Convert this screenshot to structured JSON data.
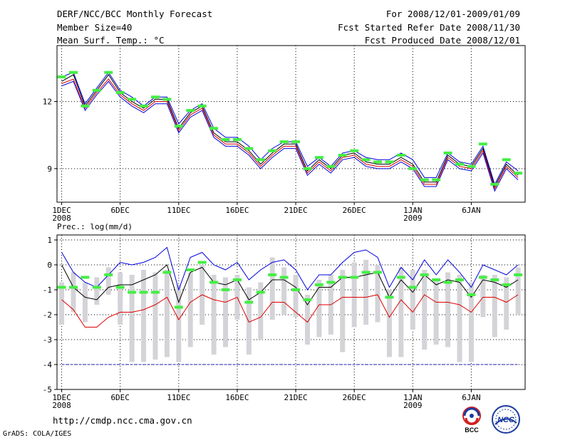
{
  "header": {
    "title": "DERF/NCC/BCC Monthly Forecast",
    "member_size": "Member Size=40",
    "variable": "Mean Surf. Temp.: °C",
    "period": "For 2008/12/01-2009/01/09",
    "started": "Fcst Started Refer Date 2008/11/30",
    "produced": "Fcst Produced Date 2008/12/01"
  },
  "footer": {
    "url": "http://cmdp.ncc.cma.gov.cn",
    "grads": "GrADS: COLA/IGES",
    "logo_bcc": "BCC",
    "logo_ncc": "NCC"
  },
  "colors": {
    "upper": "#0000dd",
    "lower": "#dd0000",
    "mean": "#000000",
    "obs": "#44ee44",
    "spread": "#d4d4d8",
    "ref": "#2222bb"
  },
  "chart_data": [
    {
      "type": "line",
      "title": "Mean Surf. Temp.: °C",
      "xlabel": "",
      "ylabel": "",
      "x": [
        1,
        2,
        3,
        4,
        5,
        6,
        7,
        8,
        9,
        10,
        11,
        12,
        13,
        14,
        15,
        16,
        17,
        18,
        19,
        20,
        21,
        22,
        23,
        24,
        25,
        26,
        27,
        28,
        29,
        30,
        31,
        32,
        33,
        34,
        35,
        36,
        37,
        38,
        39,
        40
      ],
      "x_ticks": [
        {
          "x": 1,
          "label": "1DEC",
          "sub": "2008"
        },
        {
          "x": 6,
          "label": "6DEC",
          "sub": ""
        },
        {
          "x": 11,
          "label": "11DEC",
          "sub": ""
        },
        {
          "x": 16,
          "label": "16DEC",
          "sub": ""
        },
        {
          "x": 21,
          "label": "21DEC",
          "sub": ""
        },
        {
          "x": 26,
          "label": "26DEC",
          "sub": ""
        },
        {
          "x": 31,
          "label": "1JAN",
          "sub": "2009"
        },
        {
          "x": 36,
          "label": "6JAN",
          "sub": ""
        }
      ],
      "xlim": [
        0.6,
        40.6
      ],
      "ylim": [
        7.5,
        14.5
      ],
      "y_ticks": [
        9,
        12
      ],
      "grid": true,
      "series": [
        {
          "name": "upper",
          "values": [
            13.1,
            13.3,
            11.9,
            12.6,
            13.3,
            12.5,
            12.2,
            11.8,
            12.2,
            12.2,
            11.0,
            11.6,
            11.9,
            10.8,
            10.4,
            10.4,
            10.0,
            9.4,
            9.9,
            10.2,
            10.2,
            9.1,
            9.5,
            9.1,
            9.7,
            9.8,
            9.5,
            9.4,
            9.4,
            9.7,
            9.4,
            8.6,
            8.6,
            9.7,
            9.3,
            9.2,
            10.0,
            8.3,
            9.3,
            8.9
          ]
        },
        {
          "name": "mean",
          "values": [
            12.9,
            13.2,
            11.8,
            12.5,
            13.2,
            12.4,
            12.0,
            11.7,
            12.1,
            12.1,
            10.8,
            11.5,
            11.8,
            10.6,
            10.2,
            10.2,
            9.8,
            9.2,
            9.7,
            10.1,
            10.1,
            8.9,
            9.4,
            9.0,
            9.6,
            9.7,
            9.3,
            9.2,
            9.2,
            9.5,
            9.2,
            8.4,
            8.4,
            9.6,
            9.2,
            9.1,
            9.9,
            8.2,
            9.2,
            8.7
          ]
        },
        {
          "name": "lower",
          "values": [
            12.8,
            13.0,
            11.7,
            12.4,
            13.0,
            12.3,
            11.9,
            11.6,
            12.0,
            12.0,
            10.7,
            11.4,
            11.7,
            10.5,
            10.1,
            10.1,
            9.7,
            9.1,
            9.6,
            10.0,
            10.0,
            8.8,
            9.3,
            8.9,
            9.5,
            9.6,
            9.2,
            9.1,
            9.1,
            9.4,
            9.1,
            8.3,
            8.3,
            9.5,
            9.1,
            9.0,
            9.8,
            8.1,
            9.1,
            8.6
          ]
        },
        {
          "name": "lowest",
          "values": [
            12.7,
            12.9,
            11.6,
            12.3,
            12.9,
            12.2,
            11.8,
            11.5,
            11.9,
            11.9,
            10.6,
            11.3,
            11.6,
            10.4,
            10.0,
            10.0,
            9.6,
            9.0,
            9.5,
            9.9,
            9.9,
            8.7,
            9.2,
            8.8,
            9.4,
            9.5,
            9.1,
            9.0,
            9.0,
            9.3,
            9.0,
            8.2,
            8.2,
            9.4,
            9.0,
            8.9,
            9.7,
            8.0,
            9.0,
            8.5
          ]
        }
      ],
      "observed": [
        13.1,
        13.3,
        11.8,
        12.5,
        13.3,
        12.4,
        12.1,
        11.8,
        12.2,
        12.1,
        10.9,
        11.6,
        11.8,
        10.8,
        10.3,
        10.3,
        9.9,
        9.4,
        9.8,
        10.2,
        10.2,
        9.0,
        9.5,
        9.1,
        9.6,
        9.8,
        9.4,
        9.3,
        9.3,
        9.6,
        9.0,
        8.5,
        8.5,
        9.7,
        9.2,
        9.1,
        10.1,
        8.3,
        9.4,
        8.8
      ]
    },
    {
      "type": "line",
      "title": "Prec.: log(mm/d)",
      "xlabel": "",
      "ylabel": "",
      "x": [
        1,
        2,
        3,
        4,
        5,
        6,
        7,
        8,
        9,
        10,
        11,
        12,
        13,
        14,
        15,
        16,
        17,
        18,
        19,
        20,
        21,
        22,
        23,
        24,
        25,
        26,
        27,
        28,
        29,
        30,
        31,
        32,
        33,
        34,
        35,
        36,
        37,
        38,
        39,
        40
      ],
      "x_ticks": [
        {
          "x": 1,
          "label": "1DEC",
          "sub": "2008"
        },
        {
          "x": 6,
          "label": "6DEC",
          "sub": ""
        },
        {
          "x": 11,
          "label": "11DEC",
          "sub": ""
        },
        {
          "x": 16,
          "label": "16DEC",
          "sub": ""
        },
        {
          "x": 21,
          "label": "21DEC",
          "sub": ""
        },
        {
          "x": 26,
          "label": "26DEC",
          "sub": ""
        },
        {
          "x": 31,
          "label": "1JAN",
          "sub": "2009"
        },
        {
          "x": 36,
          "label": "6JAN",
          "sub": ""
        }
      ],
      "xlim": [
        0.6,
        40.6
      ],
      "ylim": [
        -5,
        1.2
      ],
      "y_ticks": [
        -5,
        -4,
        -3,
        -2,
        -1,
        0,
        1
      ],
      "grid": true,
      "reference_line": -4,
      "series": [
        {
          "name": "upper",
          "values": [
            0.5,
            -0.3,
            -0.7,
            -0.9,
            -0.4,
            0.1,
            0.0,
            0.1,
            0.3,
            0.7,
            -1.0,
            0.3,
            0.5,
            0.0,
            -0.2,
            0.1,
            -0.6,
            -0.2,
            0.1,
            0.2,
            -0.2,
            -1.0,
            -0.4,
            -0.4,
            0.1,
            0.5,
            0.6,
            0.3,
            -0.9,
            -0.1,
            -0.6,
            0.2,
            -0.4,
            0.2,
            -0.3,
            -0.9,
            0.0,
            -0.2,
            -0.4,
            0.0
          ]
        },
        {
          "name": "mean",
          "values": [
            0.0,
            -0.9,
            -1.3,
            -1.4,
            -0.9,
            -0.8,
            -0.8,
            -0.6,
            -0.4,
            0.0,
            -1.5,
            -0.3,
            -0.1,
            -0.7,
            -0.8,
            -0.6,
            -1.4,
            -1.1,
            -0.6,
            -0.6,
            -0.9,
            -1.6,
            -0.9,
            -0.9,
            -0.5,
            -0.5,
            -0.4,
            -0.3,
            -1.3,
            -0.6,
            -1.1,
            -0.4,
            -0.8,
            -0.6,
            -0.7,
            -1.3,
            -0.6,
            -0.7,
            -0.9,
            -0.6
          ]
        },
        {
          "name": "lower",
          "values": [
            -1.4,
            -1.8,
            -2.5,
            -2.5,
            -2.1,
            -1.9,
            -1.9,
            -1.8,
            -1.6,
            -1.3,
            -2.2,
            -1.5,
            -1.2,
            -1.4,
            -1.5,
            -1.3,
            -2.3,
            -2.1,
            -1.5,
            -1.5,
            -1.9,
            -2.3,
            -1.6,
            -1.6,
            -1.3,
            -1.3,
            -1.3,
            -1.2,
            -2.1,
            -1.4,
            -1.9,
            -1.2,
            -1.5,
            -1.5,
            -1.6,
            -1.9,
            -1.3,
            -1.3,
            -1.5,
            -1.2
          ]
        }
      ],
      "observed": [
        -0.9,
        -0.9,
        -0.5,
        -0.9,
        -0.4,
        -0.9,
        -1.1,
        -1.1,
        -1.1,
        -0.3,
        -1.7,
        -0.2,
        0.1,
        -0.7,
        -1.0,
        -0.6,
        -1.5,
        -1.1,
        -0.4,
        -0.5,
        -1.0,
        -1.4,
        -0.8,
        -0.7,
        -0.5,
        -0.5,
        -0.3,
        -0.3,
        -1.3,
        -0.5,
        -0.9,
        -0.4,
        -0.6,
        -0.7,
        -0.6,
        -1.2,
        -0.5,
        -0.6,
        -0.8,
        -0.4
      ],
      "spread": [
        [
          -2.4,
          -0.7
        ],
        [
          -1.9,
          -0.3
        ],
        [
          -2.3,
          -0.7
        ],
        [
          -1.6,
          -0.5
        ],
        [
          -1.2,
          -0.1
        ],
        [
          -2.4,
          -0.3
        ],
        [
          -3.9,
          -0.4
        ],
        [
          -3.9,
          -0.2
        ],
        [
          -3.8,
          -0.3
        ],
        [
          -3.7,
          -0.2
        ],
        [
          -3.9,
          -0.8
        ],
        [
          -3.3,
          -0.3
        ],
        [
          -2.4,
          0.0
        ],
        [
          -3.6,
          -0.4
        ],
        [
          -3.3,
          -0.5
        ],
        [
          -2.2,
          -0.4
        ],
        [
          -3.6,
          -0.9
        ],
        [
          -3.0,
          -0.7
        ],
        [
          -2.2,
          0.3
        ],
        [
          -2.0,
          -0.1
        ],
        [
          -2.1,
          -0.4
        ],
        [
          -3.2,
          -1.2
        ],
        [
          -2.9,
          -0.6
        ],
        [
          -2.8,
          -0.4
        ],
        [
          -3.5,
          -0.2
        ],
        [
          -2.5,
          0.1
        ],
        [
          -2.4,
          0.2
        ],
        [
          -2.3,
          0.0
        ],
        [
          -3.7,
          -1.0
        ],
        [
          -3.7,
          -0.1
        ],
        [
          -2.6,
          -0.2
        ],
        [
          -3.4,
          -0.2
        ],
        [
          -3.2,
          -0.6
        ],
        [
          -3.3,
          -0.3
        ],
        [
          -3.9,
          -0.4
        ],
        [
          -3.9,
          -0.7
        ],
        [
          -2.1,
          -0.4
        ],
        [
          -2.9,
          -0.4
        ],
        [
          -2.6,
          -0.5
        ],
        [
          -2.0,
          -0.1
        ]
      ]
    }
  ]
}
